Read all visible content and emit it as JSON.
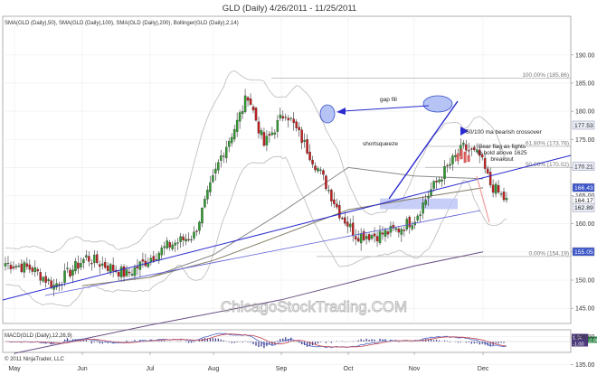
{
  "title": "GLD (Daily)  4/26/2011 - 11/25/2011",
  "indicators_label": "SMA(GLD (Daily),50), SMA(GLD (Daily),100), SMA(GLD (Daily),200), Bollinger(GLD (Daily),2,14)",
  "macd_label": "MACD(GLD (Daily),12,26,9)",
  "copyright": "© 2011 NinjaTrader, LLC",
  "watermark": "ChicagoStockTrading.COM",
  "colors": {
    "up": "#2e9a2e",
    "down": "#c41e1e",
    "sma50": "#8a8a8a",
    "sma100": "#807a62",
    "sma200": "#6a4f84",
    "bollinger": "#b9b9b9",
    "trendline": "#2a2ad0",
    "fib": "#b0b0b0",
    "macd": "#4f67c4",
    "macd_signal": "#c2434f",
    "price_box": "#3a55c8",
    "last_price_box": "#4d3a7a"
  },
  "chart_data": {
    "type": "candlestick",
    "title": "GLD (Daily)  4/26/2011 - 11/25/2011",
    "x": [
      "May",
      "Jun",
      "Jul",
      "Aug",
      "Sep",
      "Oct",
      "Nov",
      "Dec"
    ],
    "y_ticks": [
      135,
      140,
      145,
      150,
      155,
      160,
      165,
      170,
      175,
      180,
      185,
      190
    ],
    "ylim": [
      134,
      191
    ],
    "fib_levels": [
      {
        "label": "100.00% (185.86)",
        "value": 185.86
      },
      {
        "label": "61.80% (173.76)",
        "value": 173.76
      },
      {
        "label": "50.00% (170.02)",
        "value": 170.02
      },
      {
        "label": "0.00% (154.19)",
        "value": 154.19
      }
    ],
    "price_labels": [
      {
        "value": "177.53",
        "y": 177.53,
        "kind": "light"
      },
      {
        "value": "170.21",
        "y": 170.21,
        "kind": "light"
      },
      {
        "value": "166.43",
        "y": 166.43,
        "kind": "blue"
      },
      {
        "value": "164.17",
        "y": 164.17,
        "kind": "light"
      },
      {
        "value": "162.89",
        "y": 162.89,
        "kind": "light"
      },
      {
        "value": "155.05",
        "y": 155.05,
        "kind": "blue"
      }
    ],
    "annotations": {
      "gap_fill": "gap fill",
      "short_squeeze": "shortsqueeze",
      "ma_crossover": "50/100 ma bearish crossover",
      "bear_flag_1": "Bear flag as fights",
      "bear_flag_2": "to hold above 1625",
      "bear_flag_3": "breakout"
    },
    "watermark": "ChicagoStockTrading.COM",
    "series": [
      {
        "name": "SMA(GLD (Daily),50)",
        "values": [
          {
            "x": "Jul",
            "y": 150.5
          },
          {
            "x": "Aug",
            "y": 154.5
          },
          {
            "x": "Sep",
            "y": 162
          },
          {
            "x": "Oct",
            "y": 170
          },
          {
            "x": "Nov",
            "y": 168.5
          },
          {
            "x": "Dec",
            "y": 168
          }
        ]
      },
      {
        "name": "SMA(GLD (Daily),100)",
        "values": [
          {
            "x": "Jun",
            "y": 149
          },
          {
            "x": "Jul",
            "y": 150.5
          },
          {
            "x": "Aug",
            "y": 153.5
          },
          {
            "x": "Sep",
            "y": 158
          },
          {
            "x": "Oct",
            "y": 162.5
          },
          {
            "x": "Nov",
            "y": 164.5
          },
          {
            "x": "Dec",
            "y": 166.4
          }
        ]
      },
      {
        "name": "SMA(GLD (Daily),200)",
        "values": [
          {
            "x": "May",
            "y": 137
          },
          {
            "x": "Jul",
            "y": 142
          },
          {
            "x": "Sep",
            "y": 146.5
          },
          {
            "x": "Oct",
            "y": 149.5
          },
          {
            "x": "Nov",
            "y": 152.5
          },
          {
            "x": "Dec",
            "y": 155
          }
        ]
      }
    ],
    "macd_panel": {
      "label": "MACD(GLD (Daily),12,26,9)",
      "value_labels": [
        "1.04",
        "-1.00",
        "2.06"
      ]
    }
  }
}
